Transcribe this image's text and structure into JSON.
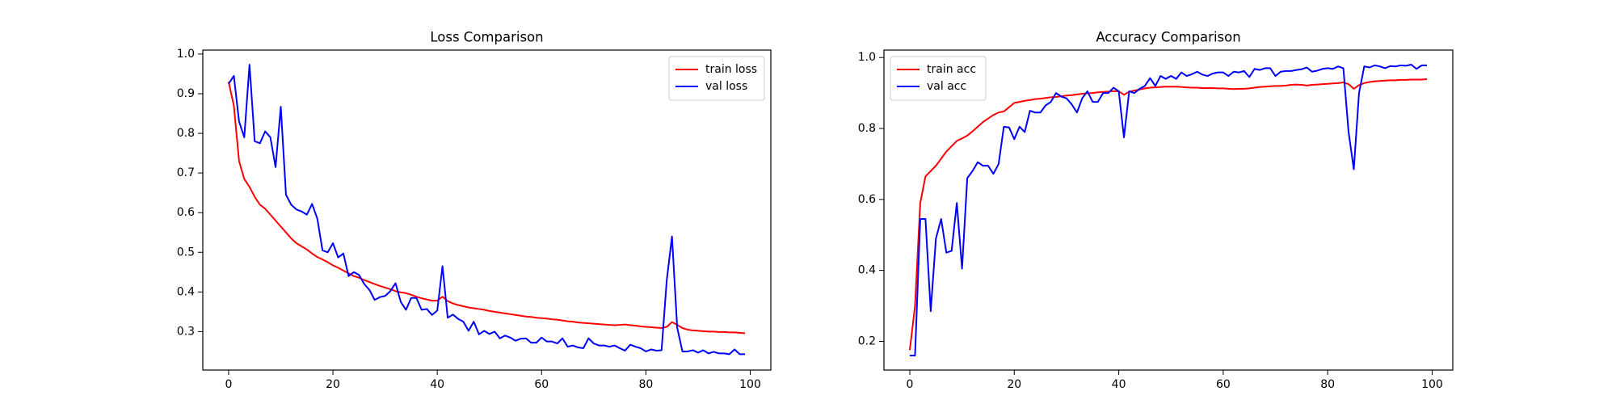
{
  "chart_data": [
    {
      "type": "line",
      "title": "Loss Comparison",
      "x": [
        0,
        1,
        2,
        3,
        4,
        5,
        6,
        7,
        8,
        9,
        10,
        11,
        12,
        13,
        14,
        15,
        16,
        17,
        18,
        19,
        20,
        21,
        22,
        23,
        24,
        25,
        26,
        27,
        28,
        29,
        30,
        31,
        32,
        33,
        34,
        35,
        36,
        37,
        38,
        39,
        40,
        41,
        42,
        43,
        44,
        45,
        46,
        47,
        48,
        49,
        50,
        51,
        52,
        53,
        54,
        55,
        56,
        57,
        58,
        59,
        60,
        61,
        62,
        63,
        64,
        65,
        66,
        67,
        68,
        69,
        70,
        71,
        72,
        73,
        74,
        75,
        76,
        77,
        78,
        79,
        80,
        81,
        82,
        83,
        84,
        85,
        86,
        87,
        88,
        89,
        90,
        91,
        92,
        93,
        94,
        95,
        96,
        97,
        98,
        99
      ],
      "series": [
        {
          "name": "train loss",
          "color": "#ff0000",
          "values": [
            0.93,
            0.87,
            0.73,
            0.685,
            0.665,
            0.64,
            0.62,
            0.61,
            0.595,
            0.58,
            0.565,
            0.55,
            0.535,
            0.523,
            0.515,
            0.507,
            0.497,
            0.488,
            0.482,
            0.475,
            0.467,
            0.461,
            0.454,
            0.447,
            0.44,
            0.436,
            0.43,
            0.425,
            0.42,
            0.415,
            0.411,
            0.407,
            0.402,
            0.399,
            0.397,
            0.393,
            0.388,
            0.384,
            0.381,
            0.378,
            0.378,
            0.388,
            0.377,
            0.371,
            0.367,
            0.364,
            0.361,
            0.359,
            0.357,
            0.355,
            0.352,
            0.35,
            0.348,
            0.346,
            0.344,
            0.342,
            0.34,
            0.338,
            0.337,
            0.335,
            0.334,
            0.333,
            0.331,
            0.33,
            0.328,
            0.326,
            0.325,
            0.323,
            0.322,
            0.321,
            0.32,
            0.319,
            0.318,
            0.317,
            0.316,
            0.317,
            0.318,
            0.316,
            0.315,
            0.313,
            0.312,
            0.311,
            0.31,
            0.309,
            0.312,
            0.324,
            0.317,
            0.309,
            0.305,
            0.303,
            0.302,
            0.301,
            0.3,
            0.3,
            0.299,
            0.299,
            0.298,
            0.298,
            0.297,
            0.296
          ]
        },
        {
          "name": "val loss",
          "color": "#0000ff",
          "values": [
            0.925,
            0.945,
            0.83,
            0.79,
            0.973,
            0.78,
            0.775,
            0.805,
            0.79,
            0.715,
            0.867,
            0.645,
            0.62,
            0.608,
            0.603,
            0.595,
            0.622,
            0.585,
            0.505,
            0.5,
            0.523,
            0.487,
            0.497,
            0.44,
            0.45,
            0.443,
            0.42,
            0.405,
            0.38,
            0.387,
            0.39,
            0.402,
            0.422,
            0.375,
            0.355,
            0.385,
            0.385,
            0.355,
            0.357,
            0.342,
            0.353,
            0.465,
            0.335,
            0.343,
            0.332,
            0.325,
            0.302,
            0.325,
            0.293,
            0.302,
            0.294,
            0.3,
            0.283,
            0.29,
            0.285,
            0.277,
            0.282,
            0.283,
            0.272,
            0.272,
            0.285,
            0.275,
            0.275,
            0.27,
            0.283,
            0.262,
            0.265,
            0.26,
            0.258,
            0.283,
            0.27,
            0.265,
            0.265,
            0.262,
            0.265,
            0.258,
            0.252,
            0.267,
            0.262,
            0.258,
            0.25,
            0.255,
            0.252,
            0.253,
            0.43,
            0.54,
            0.31,
            0.25,
            0.25,
            0.253,
            0.247,
            0.253,
            0.245,
            0.249,
            0.245,
            0.245,
            0.243,
            0.255,
            0.243,
            0.243
          ]
        }
      ],
      "xlim": [
        -4.95,
        103.95
      ],
      "ylim": [
        0.203,
        1.01
      ],
      "xticks": [
        0,
        20,
        40,
        60,
        80,
        100
      ],
      "yticks": [
        0.3,
        0.4,
        0.5,
        0.6,
        0.7,
        0.8,
        0.9,
        {
          "value": 1,
          "label": "1.0"
        }
      ],
      "legend": "upper-right"
    },
    {
      "type": "line",
      "title": "Accuracy Comparison",
      "x": [
        0,
        1,
        2,
        3,
        4,
        5,
        6,
        7,
        8,
        9,
        10,
        11,
        12,
        13,
        14,
        15,
        16,
        17,
        18,
        19,
        20,
        21,
        22,
        23,
        24,
        25,
        26,
        27,
        28,
        29,
        30,
        31,
        32,
        33,
        34,
        35,
        36,
        37,
        38,
        39,
        40,
        41,
        42,
        43,
        44,
        45,
        46,
        47,
        48,
        49,
        50,
        51,
        52,
        53,
        54,
        55,
        56,
        57,
        58,
        59,
        60,
        61,
        62,
        63,
        64,
        65,
        66,
        67,
        68,
        69,
        70,
        71,
        72,
        73,
        74,
        75,
        76,
        77,
        78,
        79,
        80,
        81,
        82,
        83,
        84,
        85,
        86,
        87,
        88,
        89,
        90,
        91,
        92,
        93,
        94,
        95,
        96,
        97,
        98,
        99
      ],
      "series": [
        {
          "name": "train acc",
          "color": "#ff0000",
          "values": [
            0.175,
            0.3,
            0.59,
            0.665,
            0.68,
            0.695,
            0.715,
            0.735,
            0.75,
            0.765,
            0.772,
            0.78,
            0.792,
            0.805,
            0.818,
            0.828,
            0.838,
            0.845,
            0.848,
            0.86,
            0.872,
            0.875,
            0.878,
            0.88,
            0.883,
            0.884,
            0.886,
            0.888,
            0.889,
            0.891,
            0.893,
            0.894,
            0.896,
            0.898,
            0.899,
            0.9,
            0.902,
            0.903,
            0.904,
            0.905,
            0.905,
            0.895,
            0.904,
            0.907,
            0.91,
            0.913,
            0.915,
            0.916,
            0.917,
            0.918,
            0.918,
            0.918,
            0.917,
            0.916,
            0.915,
            0.915,
            0.914,
            0.914,
            0.914,
            0.913,
            0.913,
            0.912,
            0.911,
            0.912,
            0.912,
            0.913,
            0.915,
            0.917,
            0.918,
            0.919,
            0.92,
            0.92,
            0.921,
            0.923,
            0.924,
            0.923,
            0.921,
            0.923,
            0.924,
            0.925,
            0.926,
            0.927,
            0.928,
            0.93,
            0.925,
            0.912,
            0.922,
            0.928,
            0.931,
            0.933,
            0.934,
            0.935,
            0.936,
            0.936,
            0.937,
            0.937,
            0.938,
            0.938,
            0.938,
            0.939
          ]
        },
        {
          "name": "val acc",
          "color": "#0000ff",
          "values": [
            0.16,
            0.16,
            0.545,
            0.545,
            0.285,
            0.49,
            0.545,
            0.45,
            0.455,
            0.59,
            0.405,
            0.66,
            0.68,
            0.705,
            0.695,
            0.695,
            0.672,
            0.7,
            0.805,
            0.803,
            0.77,
            0.805,
            0.79,
            0.85,
            0.845,
            0.845,
            0.865,
            0.875,
            0.9,
            0.89,
            0.885,
            0.868,
            0.845,
            0.885,
            0.905,
            0.875,
            0.875,
            0.9,
            0.9,
            0.915,
            0.905,
            0.775,
            0.905,
            0.9,
            0.912,
            0.92,
            0.942,
            0.92,
            0.948,
            0.94,
            0.948,
            0.94,
            0.958,
            0.948,
            0.953,
            0.96,
            0.952,
            0.948,
            0.955,
            0.958,
            0.958,
            0.948,
            0.96,
            0.958,
            0.962,
            0.945,
            0.968,
            0.965,
            0.97,
            0.97,
            0.948,
            0.96,
            0.962,
            0.962,
            0.965,
            0.967,
            0.972,
            0.96,
            0.963,
            0.968,
            0.97,
            0.968,
            0.975,
            0.97,
            0.79,
            0.685,
            0.9,
            0.975,
            0.972,
            0.978,
            0.975,
            0.97,
            0.976,
            0.975,
            0.978,
            0.977,
            0.98,
            0.968,
            0.978,
            0.978
          ]
        }
      ],
      "xlim": [
        -4.95,
        103.95
      ],
      "ylim": [
        0.119,
        1.021
      ],
      "xticks": [
        0,
        20,
        40,
        60,
        80,
        100
      ],
      "yticks": [
        0.2,
        0.4,
        0.6,
        0.8,
        {
          "value": 1,
          "label": "1.0"
        }
      ],
      "legend": "upper-left"
    }
  ]
}
